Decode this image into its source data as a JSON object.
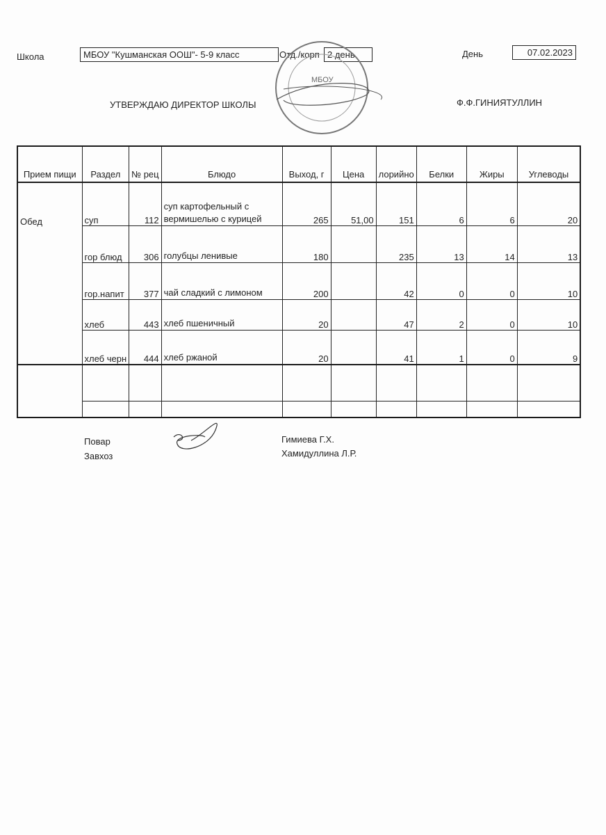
{
  "header": {
    "school_label": "Школа",
    "school_value": "МБОУ \"Кушманская ООШ\"- 5-9 класс",
    "dept_label": "Отд./корп",
    "dept_value": "2 день",
    "day_label": "День",
    "date": "07.02.2023",
    "approve": "УТВЕРЖДАЮ ДИРЕКТОР  ШКОЛЫ",
    "director": "Ф.Ф.ГИНИЯТУЛЛИН"
  },
  "stamp_text": "МБОУ",
  "table": {
    "columns": [
      "Прием пищи",
      "Раздел",
      "№ рец",
      "Блюдо",
      "Выход, г",
      "Цена",
      "лорийно",
      "Белки",
      "Жиры",
      "Углеводы"
    ],
    "meal": "Обед",
    "rows": [
      {
        "section": "суп",
        "recipe": "112",
        "dish": "суп картофельный с вермишелью с курицей",
        "yield": "265",
        "price": "51,00",
        "kcal": "151",
        "protein": "6",
        "fat": "6",
        "carbs": "20"
      },
      {
        "section": "гор блюд",
        "recipe": "306",
        "dish": "голубцы ленивые",
        "yield": "180",
        "price": "",
        "kcal": "235",
        "protein": "13",
        "fat": "14",
        "carbs": "13"
      },
      {
        "section": "гор.напит",
        "recipe": "377",
        "dish": "чай сладкий с лимоном",
        "yield": "200",
        "price": "",
        "kcal": "42",
        "protein": "0",
        "fat": "0",
        "carbs": "10"
      },
      {
        "section": "хлеб",
        "recipe": "443",
        "dish": "хлеб пшеничный",
        "yield": "20",
        "price": "",
        "kcal": "47",
        "protein": "2",
        "fat": "0",
        "carbs": "10"
      },
      {
        "section": "хлеб черн",
        "recipe": "444",
        "dish": "хлеб ржаной",
        "yield": "20",
        "price": "",
        "kcal": "41",
        "protein": "1",
        "fat": "0",
        "carbs": "9"
      }
    ]
  },
  "footer": {
    "cook_label": "Повар",
    "cook_name": "Гимиева Г.Х.",
    "storekeeper_label": "Завхоз",
    "storekeeper_name": "Хамидуллина Л.Р."
  }
}
